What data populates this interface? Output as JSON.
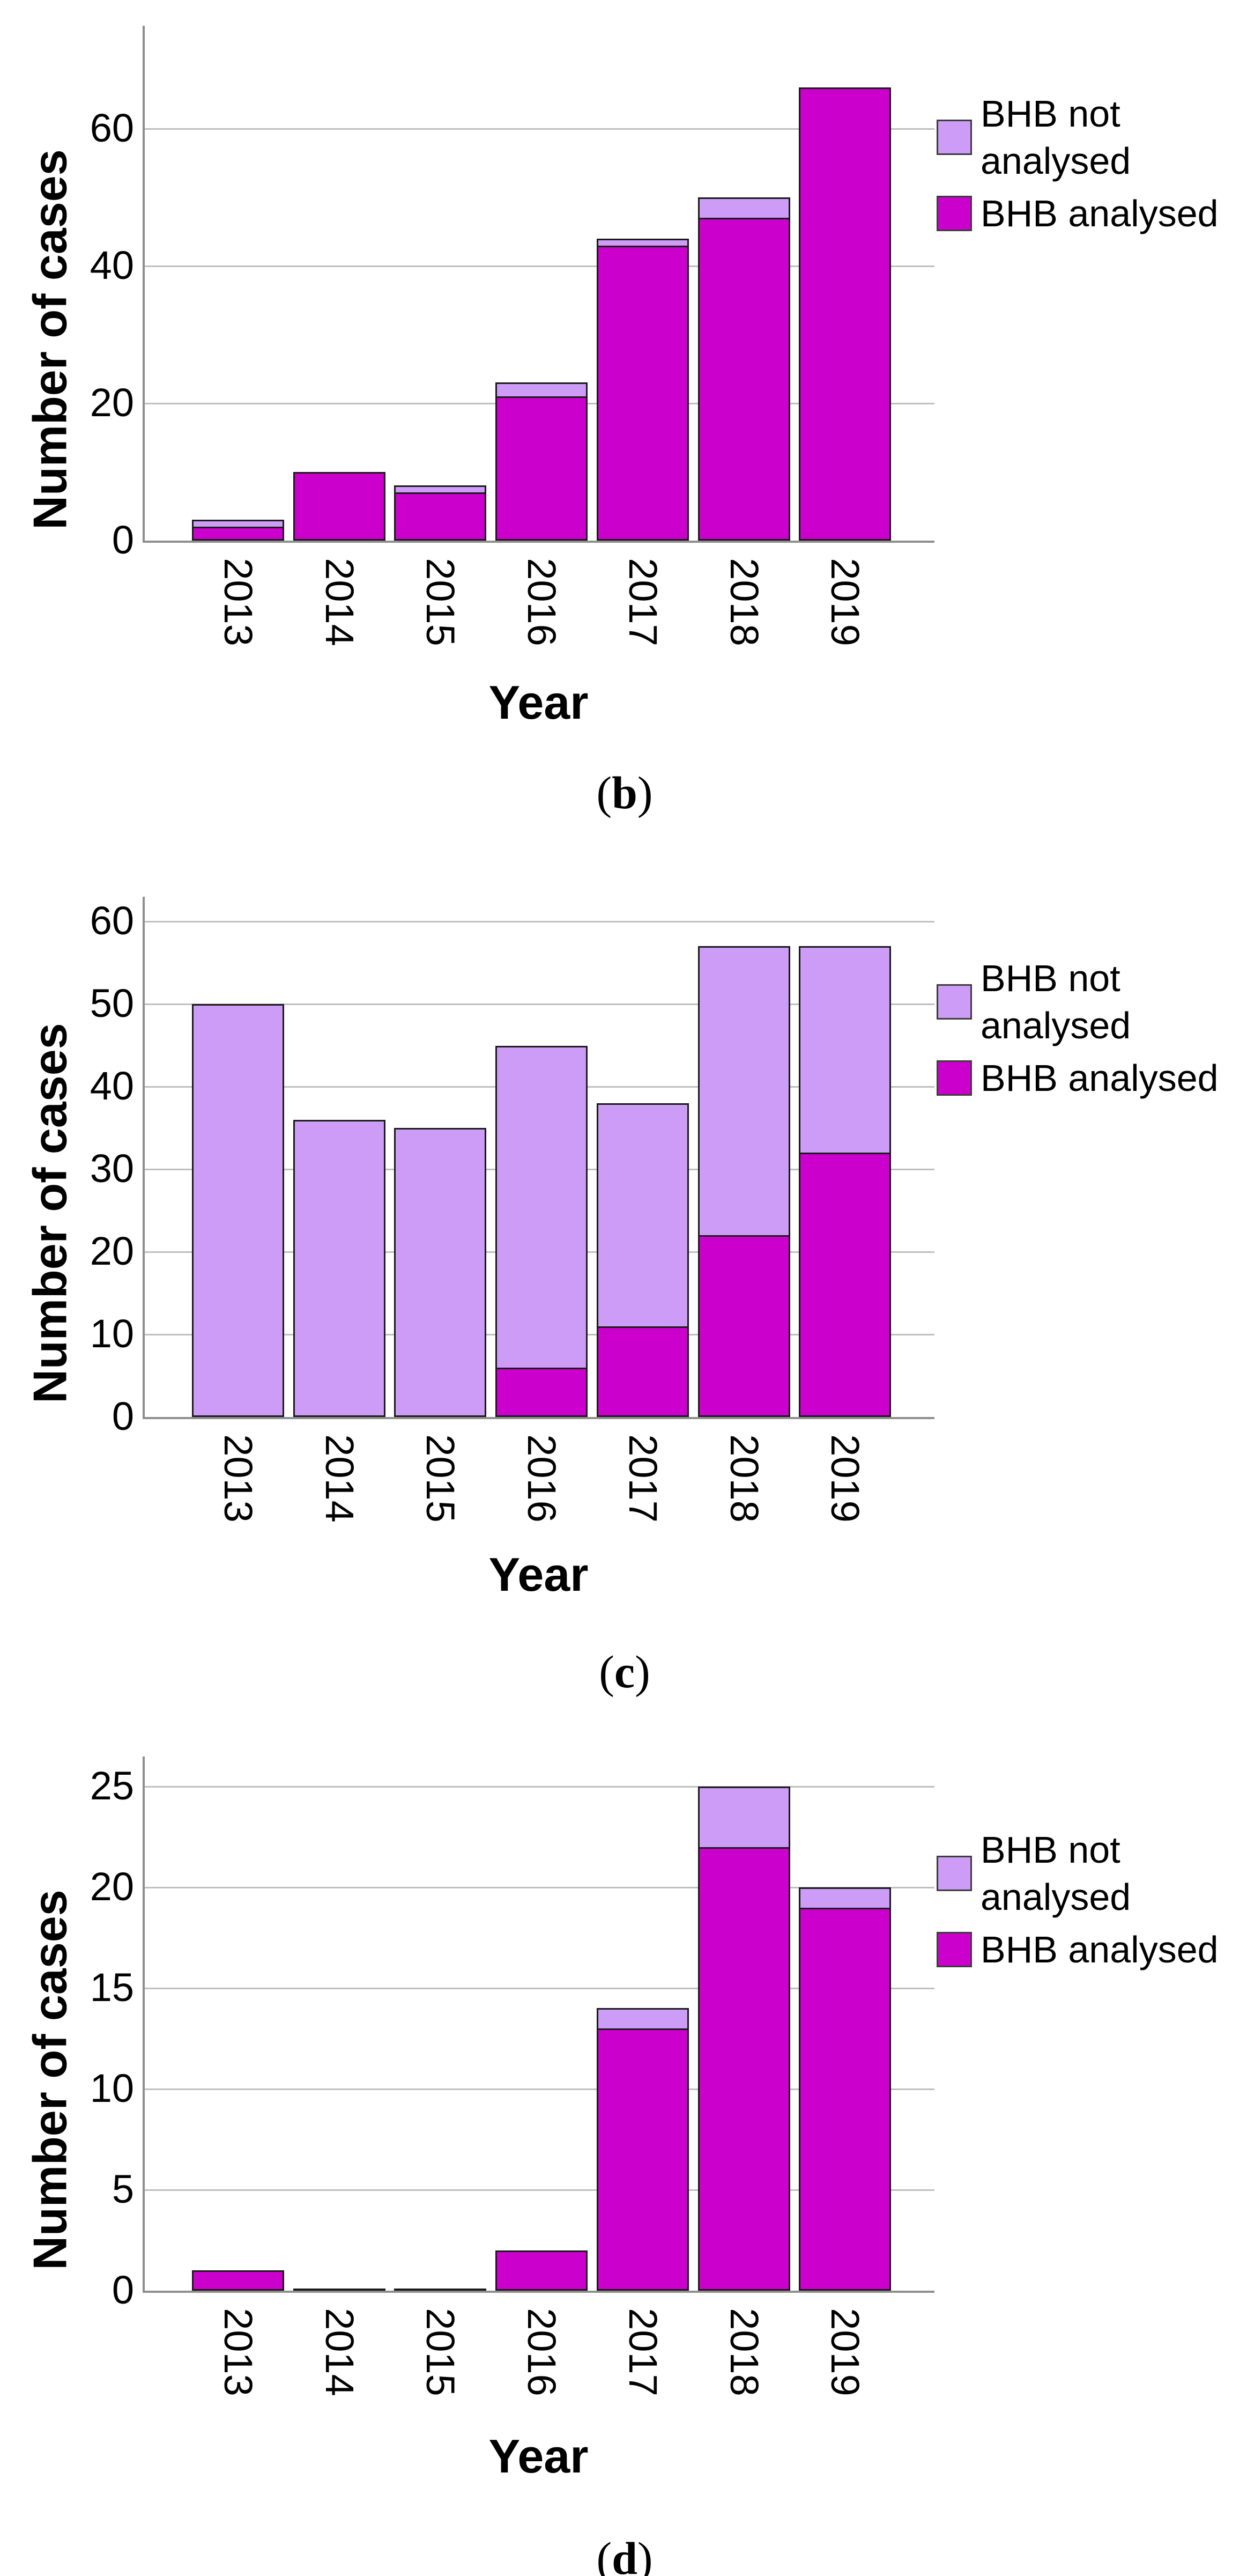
{
  "figure": {
    "ylabel": "Number of cases",
    "xlabel": "Year",
    "legend_items": [
      {
        "name": "BHB not analysed",
        "color": "#CC9CF7"
      },
      {
        "name": "BHB analysed",
        "color": "#CC00CC"
      }
    ],
    "colors": {
      "analysed": "#CC00CC",
      "not_analysed": "#CC9CF7",
      "bar_border": "#1a1a1a",
      "axis_line": "#8e8e8e",
      "gridline": "#bfbfbf"
    }
  },
  "chart_data": [
    {
      "type": "bar",
      "stacked": true,
      "caption": "(b)",
      "title": "",
      "xlabel": "Year",
      "ylabel": "Number of cases",
      "categories": [
        "2013",
        "2014",
        "2015",
        "2016",
        "2017",
        "2018",
        "2019"
      ],
      "series": [
        {
          "name": "BHB analysed",
          "color": "#CC00CC",
          "values": [
            2,
            10,
            7,
            21,
            43,
            47,
            66
          ]
        },
        {
          "name": "BHB not analysed",
          "color": "#CC9CF7",
          "values": [
            1,
            0,
            1,
            2,
            1,
            3,
            0
          ]
        }
      ],
      "totals": [
        3,
        10,
        8,
        23,
        44,
        50,
        66
      ],
      "yticks": [
        0,
        20,
        40,
        60
      ],
      "ylim": [
        0,
        75
      ],
      "grid": true,
      "legend_position": "right"
    },
    {
      "type": "bar",
      "stacked": true,
      "caption": "(c)",
      "title": "",
      "xlabel": "Year",
      "ylabel": "Number of cases",
      "categories": [
        "2013",
        "2014",
        "2015",
        "2016",
        "2017",
        "2018",
        "2019"
      ],
      "series": [
        {
          "name": "BHB analysed",
          "color": "#CC00CC",
          "values": [
            0,
            0,
            0,
            6,
            11,
            22,
            32
          ]
        },
        {
          "name": "BHB not analysed",
          "color": "#CC9CF7",
          "values": [
            50,
            36,
            35,
            39,
            27,
            35,
            25
          ]
        }
      ],
      "totals": [
        50,
        36,
        35,
        45,
        38,
        57,
        57
      ],
      "yticks": [
        0,
        10,
        20,
        30,
        40,
        50,
        60
      ],
      "ylim": [
        0,
        63
      ],
      "grid": true,
      "legend_position": "right"
    },
    {
      "type": "bar",
      "stacked": true,
      "caption": "(d)",
      "title": "",
      "xlabel": "Year",
      "ylabel": "Number of cases",
      "categories": [
        "2013",
        "2014",
        "2015",
        "2016",
        "2017",
        "2018",
        "2019"
      ],
      "series": [
        {
          "name": "BHB analysed",
          "color": "#CC00CC",
          "values": [
            1,
            0,
            0,
            2,
            13,
            22,
            19
          ]
        },
        {
          "name": "BHB not analysed",
          "color": "#CC9CF7",
          "values": [
            0,
            0,
            0,
            0,
            1,
            3,
            1
          ]
        }
      ],
      "totals": [
        1,
        0,
        0,
        2,
        14,
        25,
        20
      ],
      "yticks": [
        0,
        5,
        10,
        15,
        20,
        25
      ],
      "ylim": [
        0,
        26.5
      ],
      "grid": true,
      "legend_position": "right"
    }
  ]
}
